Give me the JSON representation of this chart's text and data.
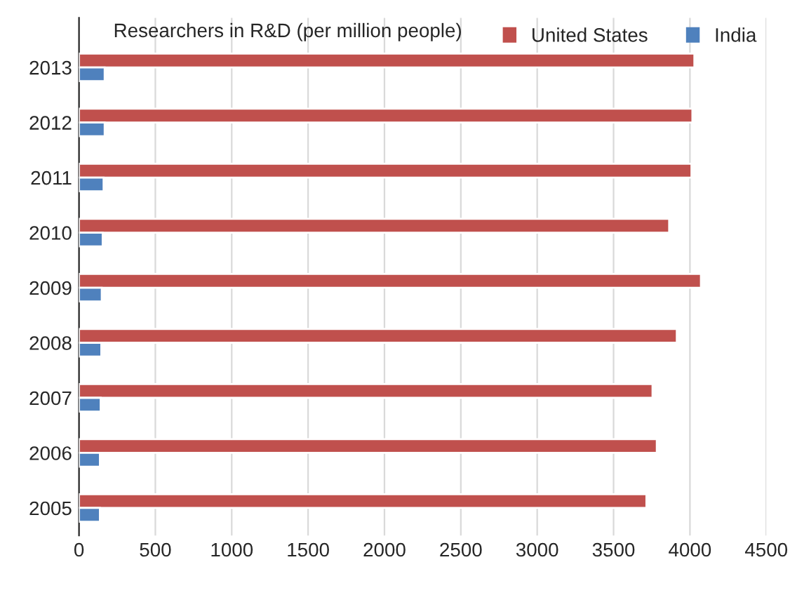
{
  "chart_data": {
    "type": "bar",
    "orientation": "horizontal",
    "title": "Researchers in R&D (per million people)",
    "categories": [
      "2013",
      "2012",
      "2011",
      "2010",
      "2009",
      "2008",
      "2007",
      "2006",
      "2005"
    ],
    "series": [
      {
        "name": "United States",
        "color": "#c0504d",
        "values": [
          4029,
          4016,
          4010,
          3864,
          4072,
          3914,
          3755,
          3783,
          3715
        ]
      },
      {
        "name": "India",
        "color": "#4f81bd",
        "values": [
          168,
          168,
          161,
          155,
          149,
          146,
          142,
          137,
          137
        ]
      }
    ],
    "xlim": [
      0,
      4500
    ],
    "xticks": [
      0,
      500,
      1000,
      1500,
      2000,
      2500,
      3000,
      3500,
      4000,
      4500
    ],
    "grid": "x",
    "legend": "top right"
  }
}
